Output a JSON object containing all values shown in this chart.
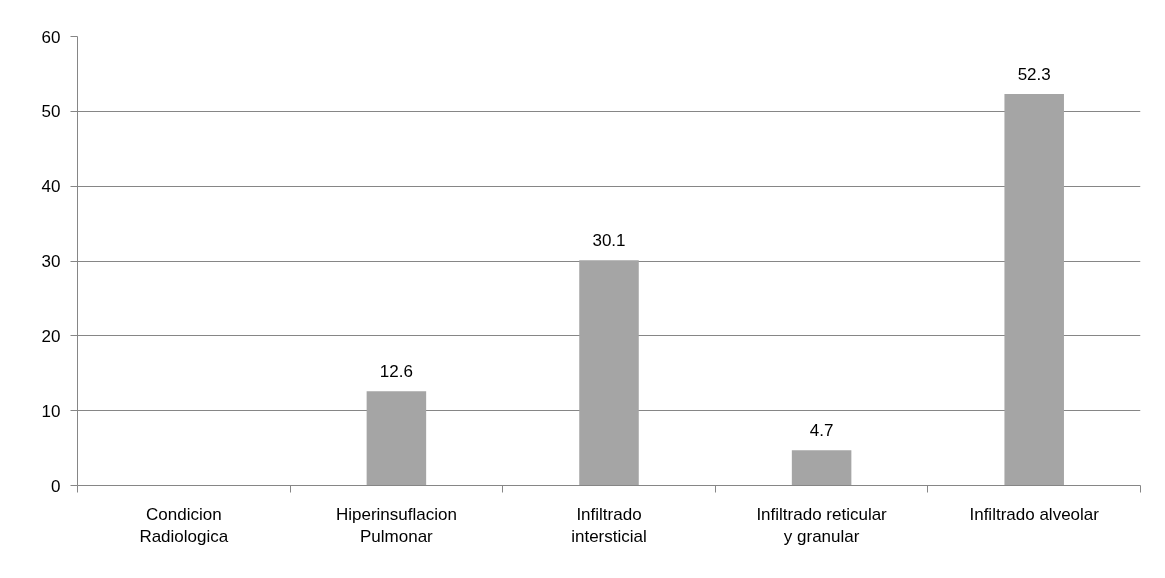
{
  "chart_data": {
    "type": "bar",
    "categories": [
      "Condicion Radiologica",
      "Hiperinsuflacion Pulmonar",
      "Infiltrado intersticial",
      "Infiltrado reticular y granular",
      "Infiltrado alveolar"
    ],
    "values": [
      null,
      12.6,
      30.1,
      4.7,
      52.3
    ],
    "color": "#a5a5a5",
    "ylim": [
      0,
      60
    ],
    "yticks": [
      0,
      10,
      20,
      30,
      40,
      50,
      60
    ],
    "grid": "y",
    "data_labels": true
  }
}
